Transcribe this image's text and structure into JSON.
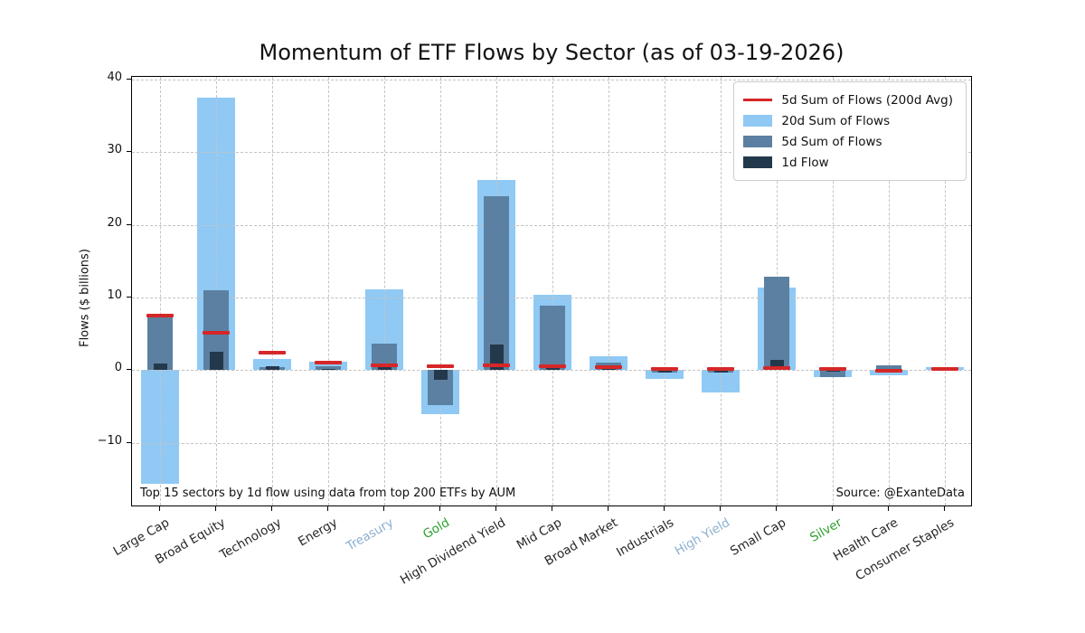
{
  "title": "Momentum of ETF Flows by Sector (as of 03-19-2026)",
  "ylabel": "Flows ($ billions)",
  "footnote": "Top 15 sectors by 1d flow using data from top 200 ETFs by AUM",
  "source": "Source: @ExanteData",
  "colors": {
    "flows_20d": "#8fc9f4",
    "flows_5d": "#5b80a1",
    "flows_1d": "#24384b",
    "avg_line": "#d62728",
    "label_default": "#262626",
    "label_rates": "#8bafd0",
    "label_metals": "#2ca02c"
  },
  "legend": [
    {
      "label": "5d Sum of Flows (200d Avg)",
      "type": "line",
      "color": "#d62728"
    },
    {
      "label": "20d Sum of Flows",
      "type": "patch",
      "color": "#8fc9f4"
    },
    {
      "label": "5d Sum of Flows",
      "type": "patch",
      "color": "#5b80a1"
    },
    {
      "label": "1d Flow",
      "type": "patch",
      "color": "#24384b"
    }
  ],
  "chart_data": {
    "type": "bar",
    "title": "Momentum of ETF Flows by Sector (as of 03-19-2026)",
    "xlabel": "",
    "ylabel": "Flows ($ billions)",
    "ylim": [
      -18.9,
      40.4
    ],
    "yticks": [
      -10,
      0,
      10,
      20,
      30,
      40
    ],
    "grid": true,
    "legend_position": "upper right",
    "categories": [
      "Large Cap",
      "Broad Equity",
      "Technology",
      "Energy",
      "Treasury",
      "Gold",
      "High Dividend Yield",
      "Mid Cap",
      "Broad Market",
      "Industrials",
      "High Yield",
      "Small Cap",
      "Silver",
      "Health Care",
      "Consumer Staples"
    ],
    "category_colors": [
      "#262626",
      "#262626",
      "#262626",
      "#262626",
      "#8bafd0",
      "#2ca02c",
      "#262626",
      "#262626",
      "#262626",
      "#262626",
      "#8bafd0",
      "#262626",
      "#2ca02c",
      "#262626",
      "#262626"
    ],
    "series": [
      {
        "name": "20d Sum of Flows",
        "style": "bar",
        "color": "#8fc9f4",
        "values": [
          -15.6,
          37.5,
          1.5,
          1.2,
          11.1,
          -6.1,
          26.2,
          10.4,
          1.9,
          -1.2,
          -3.1,
          11.4,
          -1.0,
          -0.7,
          0.4
        ]
      },
      {
        "name": "5d Sum of Flows",
        "style": "bar",
        "color": "#5b80a1",
        "values": [
          7.2,
          11.0,
          0.4,
          0.5,
          3.6,
          -4.8,
          24.0,
          8.9,
          1.0,
          -0.4,
          -0.4,
          12.9,
          -0.9,
          0.6,
          0.2
        ]
      },
      {
        "name": "1d Flow",
        "style": "bar",
        "color": "#24384b",
        "values": [
          0.9,
          2.5,
          0.5,
          0.2,
          0.6,
          -1.3,
          3.5,
          0.6,
          0.3,
          -0.3,
          -0.4,
          1.4,
          -0.25,
          -0.35,
          0.1
        ]
      },
      {
        "name": "5d Sum of Flows (200d Avg)",
        "style": "line-marker",
        "color": "#d62728",
        "values": [
          7.5,
          5.2,
          2.4,
          1.0,
          0.7,
          0.5,
          0.6,
          0.5,
          0.45,
          0.1,
          0.1,
          0.25,
          0.2,
          -0.1,
          0.15
        ]
      }
    ]
  }
}
